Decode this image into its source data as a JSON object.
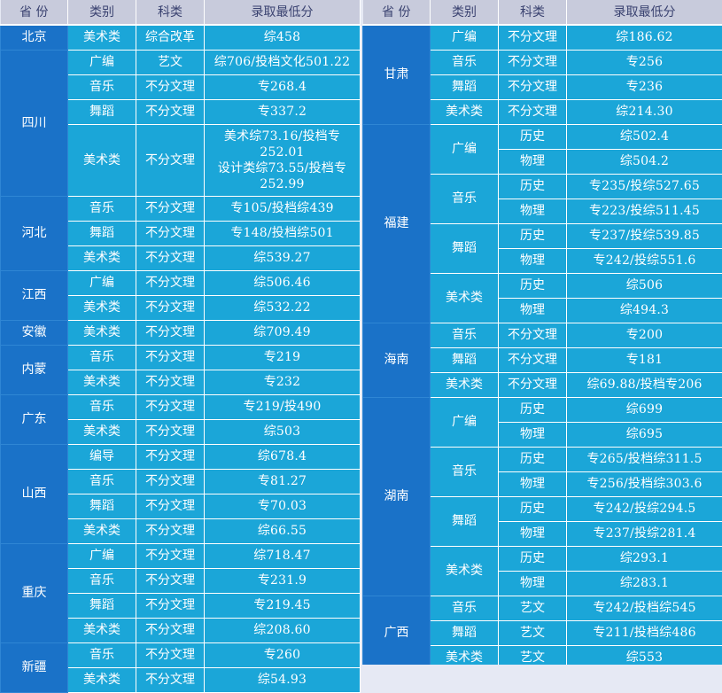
{
  "headers": {
    "province": "省 份",
    "category": "类别",
    "subject": "科类",
    "score": "录取最低分"
  },
  "left": {
    "beijing": {
      "province": "北京",
      "rows": [
        {
          "category": "美术类",
          "subject": "综合改革",
          "score": "综458"
        }
      ]
    },
    "sichuan": {
      "province": "四川",
      "rows": [
        {
          "category": "广编",
          "subject": "艺文",
          "score": "综706/投档文化501.22"
        },
        {
          "category": "音乐",
          "subject": "不分文理",
          "score": "专268.4"
        },
        {
          "category": "舞蹈",
          "subject": "不分文理",
          "score": "专337.2"
        },
        {
          "category": "美术类",
          "subject": "不分文理",
          "score_lines": [
            "美术综73.16/投档专",
            "252.01",
            "设计类综73.55/投档专",
            "252.99"
          ]
        }
      ]
    },
    "hebei": {
      "province": "河北",
      "rows": [
        {
          "category": "音乐",
          "subject": "不分文理",
          "score": "专105/投档综439"
        },
        {
          "category": "舞蹈",
          "subject": "不分文理",
          "score": "专148/投档综501"
        },
        {
          "category": "美术类",
          "subject": "不分文理",
          "score": "综539.27"
        }
      ]
    },
    "jiangxi": {
      "province": "江西",
      "rows": [
        {
          "category": "广编",
          "subject": "不分文理",
          "score": "综506.46"
        },
        {
          "category": "美术类",
          "subject": "不分文理",
          "score": "综532.22"
        }
      ]
    },
    "anhui": {
      "province": "安徽",
      "rows": [
        {
          "category": "美术类",
          "subject": "不分文理",
          "score": "综709.49"
        }
      ]
    },
    "neimeng": {
      "province": "内蒙",
      "rows": [
        {
          "category": "音乐",
          "subject": "不分文理",
          "score": "专219"
        },
        {
          "category": "美术类",
          "subject": "不分文理",
          "score": "专232"
        }
      ]
    },
    "guangdong": {
      "province": "广东",
      "rows": [
        {
          "category": "音乐",
          "subject": "不分文理",
          "score": "专219/投490"
        },
        {
          "category": "美术类",
          "subject": "不分文理",
          "score": "综503"
        }
      ]
    },
    "shanxi": {
      "province": "山西",
      "rows": [
        {
          "category": "编导",
          "subject": "不分文理",
          "score": "综678.4"
        },
        {
          "category": "音乐",
          "subject": "不分文理",
          "score": "专81.27"
        },
        {
          "category": "舞蹈",
          "subject": "不分文理",
          "score": "专70.03"
        },
        {
          "category": "美术类",
          "subject": "不分文理",
          "score": "综66.55"
        }
      ]
    },
    "chongqing": {
      "province": "重庆",
      "rows": [
        {
          "category": "广编",
          "subject": "不分文理",
          "score": "综718.47"
        },
        {
          "category": "音乐",
          "subject": "不分文理",
          "score": "专231.9"
        },
        {
          "category": "舞蹈",
          "subject": "不分文理",
          "score": "专219.45"
        },
        {
          "category": "美术类",
          "subject": "不分文理",
          "score": "综208.60"
        }
      ]
    },
    "xinjiang": {
      "province": "新疆",
      "rows": [
        {
          "category": "音乐",
          "subject": "不分文理",
          "score": "专260"
        },
        {
          "category": "美术类",
          "subject": "不分文理",
          "score": "综54.93"
        }
      ]
    }
  },
  "right": {
    "gansu": {
      "province": "甘肃",
      "rows": [
        {
          "category": "广编",
          "subject": "不分文理",
          "score": "综186.62"
        },
        {
          "category": "音乐",
          "subject": "不分文理",
          "score": "专256"
        },
        {
          "category": "舞蹈",
          "subject": "不分文理",
          "score": "专236"
        },
        {
          "category": "美术类",
          "subject": "不分文理",
          "score": "综214.30"
        }
      ]
    },
    "fujian": {
      "province": "福建",
      "cat_guangbian": "广编",
      "cat_yinyue": "音乐",
      "cat_wudao": "舞蹈",
      "cat_meishu": "美术类",
      "rows": [
        {
          "subject": "历史",
          "score": "综502.4"
        },
        {
          "subject": "物理",
          "score": "综504.2"
        },
        {
          "subject": "历史",
          "score": "专235/投综527.65"
        },
        {
          "subject": "物理",
          "score": "专223/投综511.45"
        },
        {
          "subject": "历史",
          "score": "专237/投综539.85"
        },
        {
          "subject": "物理",
          "score": "专242/投综551.6"
        },
        {
          "subject": "历史",
          "score": "综506"
        },
        {
          "subject": "物理",
          "score": "综494.3"
        }
      ]
    },
    "hainan": {
      "province": "海南",
      "rows": [
        {
          "category": "音乐",
          "subject": "不分文理",
          "score": "专200"
        },
        {
          "category": "舞蹈",
          "subject": "不分文理",
          "score": "专181"
        },
        {
          "category": "美术类",
          "subject": "不分文理",
          "score": "综69.88/投档专206"
        }
      ]
    },
    "hunan": {
      "province": "湖南",
      "cat_guangbian": "广编",
      "cat_yinyue": "音乐",
      "cat_wudao": "舞蹈",
      "cat_meishu": "美术类",
      "rows": [
        {
          "subject": "历史",
          "score": "综699"
        },
        {
          "subject": "物理",
          "score": "综695"
        },
        {
          "subject": "历史",
          "score": "专265/投档综311.5"
        },
        {
          "subject": "物理",
          "score": "专256/投档综303.6"
        },
        {
          "subject": "历史",
          "score": "专242/投综294.5"
        },
        {
          "subject": "物理",
          "score": "专237/投综281.4"
        },
        {
          "subject": "历史",
          "score": "综293.1"
        },
        {
          "subject": "物理",
          "score": "综283.1"
        }
      ]
    },
    "guangxi": {
      "province": "广西",
      "rows": [
        {
          "category": "音乐",
          "subject": "艺文",
          "score": "专242/投档综545"
        },
        {
          "category": "舞蹈",
          "subject": "艺文",
          "score": "专211/投档综486"
        },
        {
          "category": "美术类",
          "subject": "艺文",
          "score": "综553"
        }
      ]
    }
  },
  "colors": {
    "province_cell": "#1a72c8",
    "data_cell": "#1ba6d8",
    "header_bg": "#c8cbdc",
    "header_text": "#3a4270",
    "page_bg": "#e6e9f4"
  }
}
